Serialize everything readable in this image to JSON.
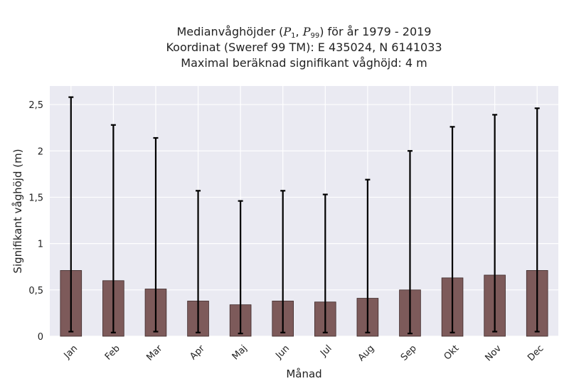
{
  "title": {
    "line1_prefix": "Medianvåghöjder (",
    "p_symbol": "P",
    "p1_sub": "1",
    "p_separator": ", ",
    "p99_sub": "99",
    "line1_suffix": ") för år 1979 - 2019",
    "line2": "Koordinat (Sweref 99 TM): E 435024, N 6141033",
    "line3": "Maximal beräknad signifikant våghöjd: 4 m"
  },
  "colors": {
    "plot_background": "#EAEAF2",
    "grid": "#FFFFFF",
    "bar_fill": "#7D5A5A",
    "bar_edge": "#3E2A2A",
    "error_bar": "#000000"
  },
  "chart_data": {
    "type": "bar",
    "title": "Medianvåghöjder (P1, P99) för år 1979 - 2019",
    "xlabel": "Månad",
    "ylabel": "Signifikant våghöjd (m)",
    "ylim": [
      0,
      2.7
    ],
    "yticks": [
      0,
      0.5,
      1,
      1.5,
      2,
      2.5
    ],
    "ytick_labels": [
      "0",
      "0,5",
      "1",
      "1,5",
      "2",
      "2,5"
    ],
    "grid": true,
    "categories": [
      "Jan",
      "Feb",
      "Mar",
      "Apr",
      "Maj",
      "Jun",
      "Jul",
      "Aug",
      "Sep",
      "Okt",
      "Nov",
      "Dec"
    ],
    "series": [
      {
        "values": [
          0.71,
          0.6,
          0.51,
          0.38,
          0.34,
          0.38,
          0.37,
          0.41,
          0.5,
          0.63,
          0.66,
          0.71
        ],
        "p1": [
          0.05,
          0.04,
          0.05,
          0.04,
          0.03,
          0.04,
          0.04,
          0.04,
          0.03,
          0.04,
          0.05,
          0.05
        ],
        "p99": [
          2.58,
          2.28,
          2.14,
          1.57,
          1.46,
          1.57,
          1.53,
          1.69,
          2.0,
          2.26,
          2.39,
          2.46
        ]
      }
    ]
  }
}
